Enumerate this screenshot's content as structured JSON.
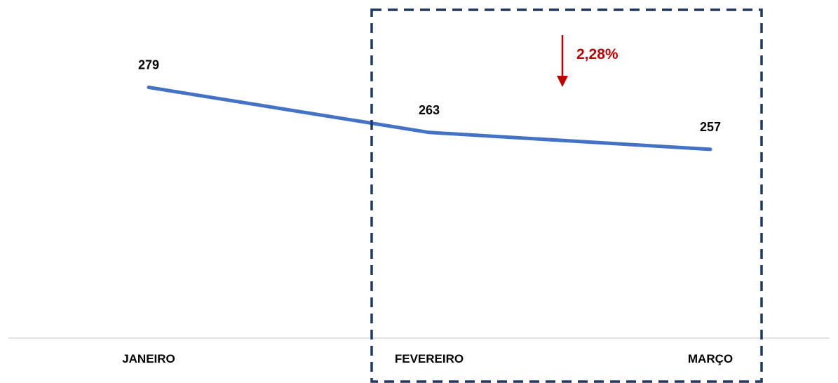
{
  "chart_data": {
    "type": "line",
    "categories": [
      "JANEIRO",
      "FEVEREIRO",
      "MARÇO"
    ],
    "values": [
      279,
      263,
      257
    ],
    "data_labels": [
      "279",
      "263",
      "257"
    ],
    "ylim": [
      190,
      310
    ],
    "grid": false,
    "legend": "none",
    "line_color": "#4472C4",
    "highlight": {
      "from": "FEVEREIRO",
      "to": "MARÇO",
      "direction": "down",
      "change_label": "2,28%",
      "change_color": "#C00000",
      "box_color": "#1F3864"
    }
  }
}
